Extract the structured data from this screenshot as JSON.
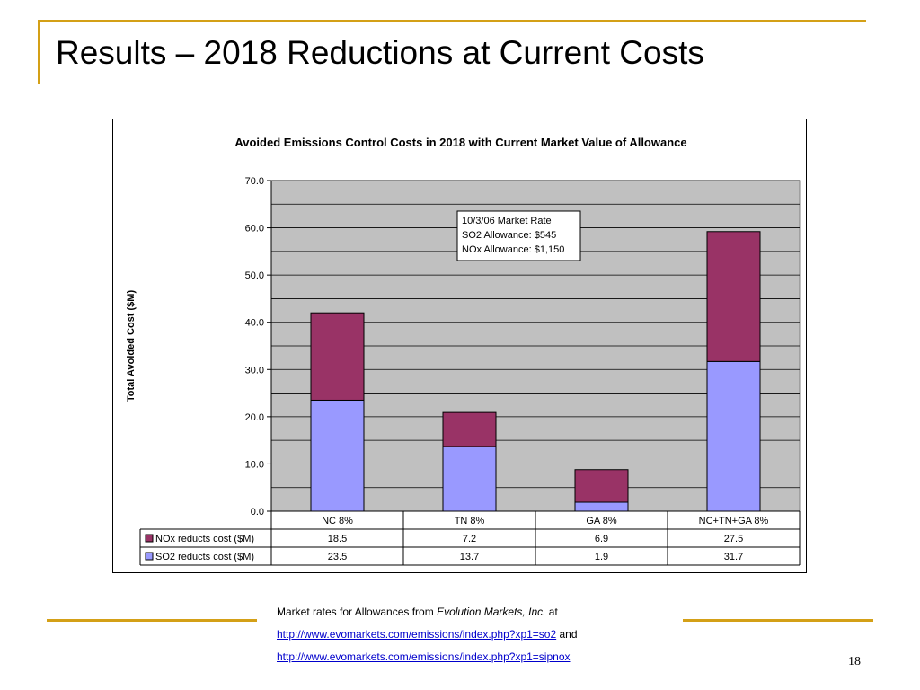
{
  "slide": {
    "title": "Results – 2018 Reductions at Current Costs",
    "page_number": "18",
    "footnote": {
      "line1_prefix": "Market rates for Allowances from ",
      "line1_italic": "Evolution Markets, Inc.",
      "line1_suffix": " at",
      "link1": "http://www.evomarkets.com/emissions/index.php?xp1=so2",
      "link_joiner": " and",
      "link2": "http://www.evomarkets.com/emissions/index.php?xp1=sipnox"
    },
    "colors": {
      "accent": "#d4a017",
      "link": "#0000cc"
    }
  },
  "chart_data": {
    "type": "bar",
    "stacked": true,
    "title": "Avoided Emissions Control Costs in 2018 with Current Market Value of Allowance",
    "ylabel": "Total Avoided Cost ($M)",
    "xlabel": "",
    "ylim": [
      0,
      70
    ],
    "yticks": [
      "0.0",
      "10.0",
      "20.0",
      "30.0",
      "40.0",
      "50.0",
      "60.0",
      "70.0"
    ],
    "grid": true,
    "categories": [
      "NC 8%",
      "TN 8%",
      "GA 8%",
      "NC+TN+GA 8%"
    ],
    "series": [
      {
        "name": "SO2 reducts cost ($M)",
        "values": [
          23.5,
          13.7,
          1.9,
          31.7
        ],
        "value_labels": [
          "23.5",
          "13.7",
          "1.9",
          "31.7"
        ],
        "color": "#9999ff"
      },
      {
        "name": "NOx reducts cost ($M)",
        "values": [
          18.5,
          7.2,
          6.9,
          27.5
        ],
        "value_labels": [
          "18.5",
          "7.2",
          "6.9",
          "27.5"
        ],
        "color": "#993366"
      }
    ],
    "table_row_order": [
      1,
      0
    ],
    "legend": "data-table",
    "annotation": {
      "lines": [
        "10/3/06 Market Rate",
        "SO2 Allowance: $545",
        "NOx Allowance: $1,150"
      ]
    },
    "colors": {
      "plot_background": "#c0c0c0",
      "gridline": "#000000"
    }
  }
}
